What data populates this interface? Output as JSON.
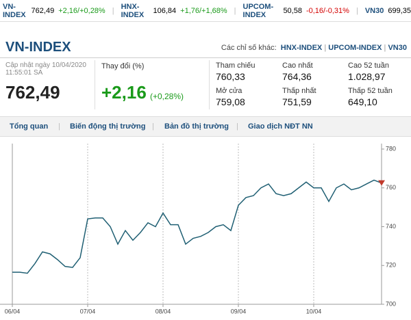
{
  "ticker": [
    {
      "name": "VN-INDEX",
      "value": "762,49",
      "change": "+2,16/+0,28%"
    },
    {
      "name": "HNX-INDEX",
      "value": "106,84",
      "change": "+1,76/+1,68%"
    },
    {
      "name": "UPCOM-INDEX",
      "value": "50,58",
      "change": "-0,16/-0,31%"
    },
    {
      "name": "VN30",
      "value": "699,35"
    }
  ],
  "header": {
    "title": "VN-INDEX",
    "other_label": "Các chỉ số khác:",
    "other_links": [
      "HNX-INDEX",
      "UPCOM-INDEX",
      "VN30"
    ]
  },
  "summary": {
    "updated": "Cập nhật ngày 10/04/2020",
    "time": "11:55:01 SA",
    "price": "762,49",
    "change_label": "Thay đổi (%)",
    "change": "+2,16",
    "change_pct": "(+0,28%)"
  },
  "stats": [
    {
      "label": "Tham chiếu",
      "value": "760,33"
    },
    {
      "label": "Cao nhất",
      "value": "764,36"
    },
    {
      "label": "Cao 52 tuần",
      "value": "1.028,97"
    },
    {
      "label": "Mở cửa",
      "value": "759,08"
    },
    {
      "label": "Thấp nhất",
      "value": "751,59"
    },
    {
      "label": "Thấp 52 tuần",
      "value": "649,10"
    }
  ],
  "tabs": [
    "Tổng quan",
    "Biến động thị trường",
    "Bản đồ thị trường",
    "Giao dịch NĐT NN"
  ],
  "chart_data": {
    "type": "line",
    "color": "#1f5f73",
    "categories": [
      "06/04",
      null,
      null,
      null,
      null,
      null,
      null,
      null,
      null,
      null,
      "07/04",
      null,
      null,
      null,
      null,
      null,
      null,
      null,
      null,
      null,
      "08/04",
      null,
      null,
      null,
      null,
      null,
      null,
      null,
      null,
      null,
      "09/04",
      null,
      null,
      null,
      null,
      null,
      null,
      null,
      null,
      null,
      "10/04",
      null,
      null,
      null,
      null,
      null,
      null,
      null,
      null,
      null
    ],
    "values": [
      716.5,
      716.5,
      716,
      721,
      727,
      726,
      723,
      719.5,
      719,
      724,
      744,
      744.5,
      744.5,
      740,
      731,
      738,
      733,
      737,
      742,
      740,
      747,
      741,
      741,
      731,
      734,
      735,
      737,
      740,
      741,
      738,
      751,
      755,
      756,
      760,
      762,
      757,
      756,
      757,
      760,
      763,
      760,
      760,
      753,
      760,
      762,
      759,
      760,
      762,
      764,
      762.5
    ],
    "ylim": [
      700,
      780
    ],
    "yticks": [
      700,
      720,
      740,
      760,
      780
    ],
    "grid": true
  }
}
